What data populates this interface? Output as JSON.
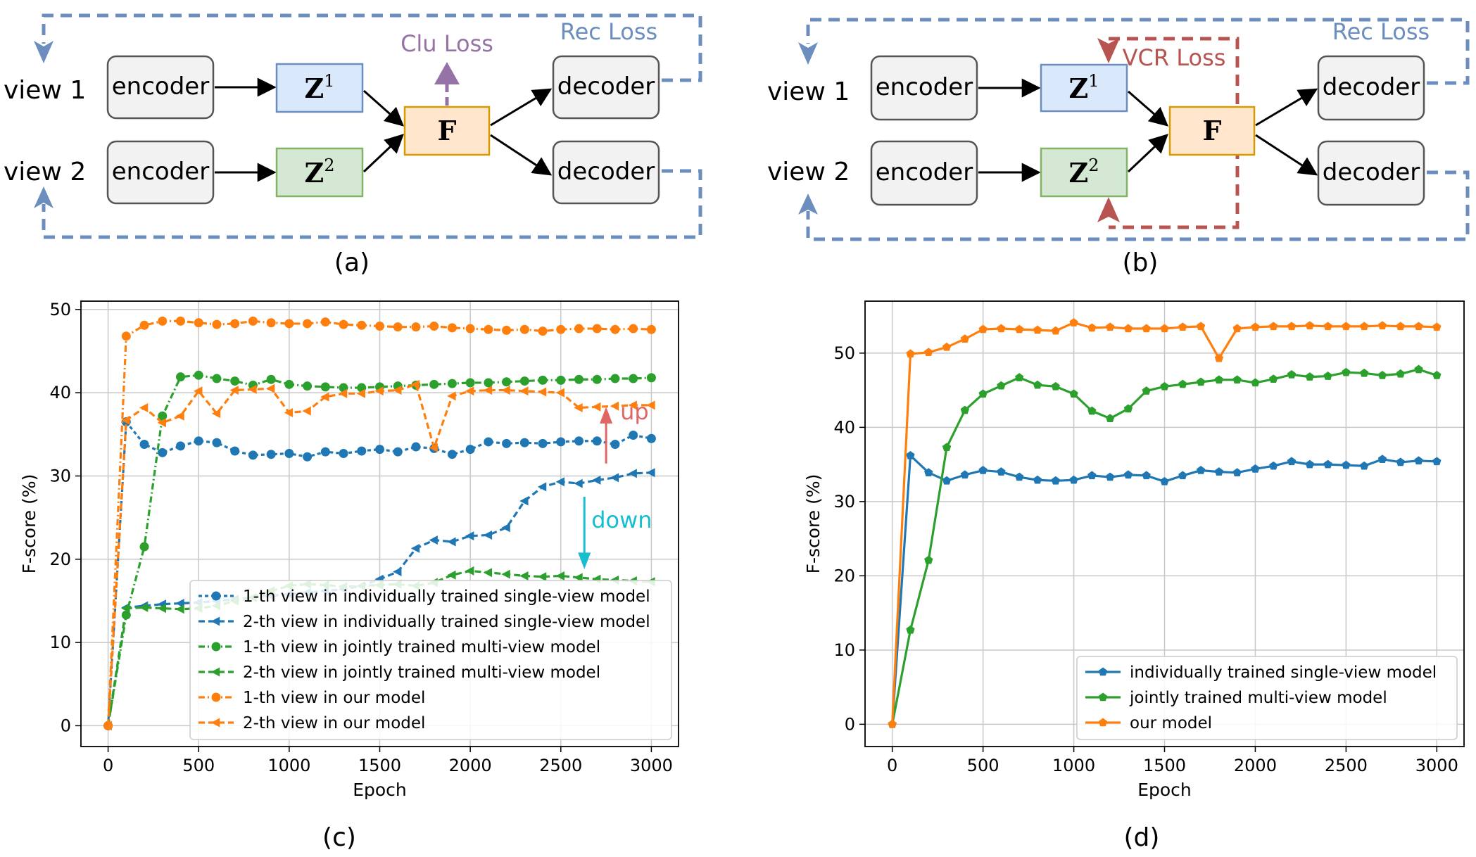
{
  "diagrams": [
    {
      "caption": "(a)",
      "views": [
        "view 1",
        "view 2"
      ],
      "encoder_label": "encoder",
      "decoder_label": "decoder",
      "latents": [
        {
          "base": "Z",
          "sup": "1"
        },
        {
          "base": "Z",
          "sup": "2"
        }
      ],
      "fusion_label": "F",
      "loss_labels": [
        "Clu Loss",
        "Rec Loss"
      ]
    },
    {
      "caption": "(b)",
      "views": [
        "view 1",
        "view 2"
      ],
      "encoder_label": "encoder",
      "decoder_label": "decoder",
      "latents": [
        {
          "base": "Z",
          "sup": "1"
        },
        {
          "base": "Z",
          "sup": "2"
        }
      ],
      "fusion_label": "F",
      "loss_labels": [
        "VCR Loss",
        "Rec Loss"
      ]
    }
  ],
  "colors": {
    "encoder_fill": "#f2f2f2",
    "z1_fill": "#dae8fc",
    "z1_stroke": "#6c8ebf",
    "z2_fill": "#d5e8d4",
    "z2_stroke": "#82b366",
    "f_fill": "#ffe6cc",
    "f_stroke": "#d79b00",
    "rec": "#6c8ebf",
    "clu": "#9673a6",
    "vcr": "#b85450",
    "up": "#e06666",
    "down": "#17becf",
    "c_blue": "#1f77b4",
    "c_green": "#2ca02c",
    "c_orange": "#ff7f0e"
  },
  "chart_data": [
    {
      "type": "line",
      "caption": "(c)",
      "xlabel": "Epoch",
      "ylabel": "F-score (%)",
      "xlim": [
        -150,
        3150
      ],
      "ylim": [
        -2.5,
        51
      ],
      "xticks": [
        0,
        500,
        1000,
        1500,
        2000,
        2500,
        3000
      ],
      "yticks": [
        0,
        10,
        20,
        30,
        40,
        50
      ],
      "grid": true,
      "legend_position": "lower-right",
      "annotations": [
        "up",
        "down"
      ],
      "x": [
        0,
        100,
        200,
        300,
        400,
        500,
        600,
        700,
        800,
        900,
        1000,
        1100,
        1200,
        1300,
        1400,
        1500,
        1600,
        1700,
        1800,
        1900,
        2000,
        2100,
        2200,
        2300,
        2400,
        2500,
        2600,
        2700,
        2800,
        2900,
        3000
      ],
      "series": [
        {
          "name": "1-th view in individually trained single-view model",
          "color": "c_blue",
          "dash": "5,4",
          "marker": "circle",
          "values": [
            0,
            36.5,
            33.8,
            32.8,
            33.6,
            34.2,
            34.0,
            33.0,
            32.5,
            32.6,
            32.7,
            32.3,
            32.9,
            32.7,
            33.0,
            33.2,
            32.9,
            33.5,
            33.3,
            32.6,
            33.2,
            34.1,
            33.9,
            34.0,
            33.9,
            34.1,
            34.2,
            34.2,
            33.8,
            34.9,
            34.5
          ]
        },
        {
          "name": "2-th view in individually trained single-view model",
          "color": "c_blue",
          "dash": "9,5",
          "marker": "tri-left",
          "values": [
            0,
            14.2,
            14.4,
            14.6,
            14.7,
            14.8,
            15.0,
            15.2,
            15.4,
            15.6,
            15.8,
            16.0,
            16.2,
            16.4,
            16.8,
            17.6,
            18.5,
            21.3,
            22.3,
            22.1,
            22.8,
            22.9,
            23.8,
            27.0,
            28.7,
            29.3,
            29.1,
            29.5,
            29.8,
            30.3,
            30.4
          ]
        },
        {
          "name": "1-th view in jointly trained multi-view model",
          "color": "c_green",
          "dash": "9,4,2,4",
          "marker": "circle",
          "values": [
            0,
            13.3,
            21.5,
            37.2,
            41.9,
            42.1,
            41.7,
            41.4,
            40.9,
            41.6,
            41.0,
            40.8,
            40.7,
            40.6,
            40.6,
            40.7,
            40.8,
            40.9,
            41.0,
            41.1,
            41.2,
            41.2,
            41.3,
            41.4,
            41.5,
            41.5,
            41.6,
            41.6,
            41.7,
            41.7,
            41.8
          ]
        },
        {
          "name": "2-th view in jointly trained multi-view model",
          "color": "c_green",
          "dash": "9,5",
          "marker": "tri-left",
          "values": [
            0,
            14.1,
            14.2,
            14.1,
            14.0,
            14.1,
            14.4,
            15.0,
            15.4,
            16.2,
            16.8,
            17.0,
            16.9,
            16.7,
            16.8,
            16.9,
            17.0,
            16.8,
            17.2,
            18.1,
            18.6,
            18.4,
            18.2,
            18.0,
            17.9,
            18.0,
            17.8,
            17.6,
            17.5,
            17.4,
            17.3
          ]
        },
        {
          "name": "1-th view in our model",
          "color": "c_orange",
          "dash": "9,4,2,4",
          "marker": "circle",
          "values": [
            0,
            46.8,
            48.1,
            48.6,
            48.6,
            48.4,
            48.2,
            48.3,
            48.6,
            48.4,
            48.3,
            48.3,
            48.5,
            48.2,
            48.1,
            48.0,
            47.9,
            47.9,
            48.0,
            47.8,
            47.7,
            47.6,
            47.5,
            47.6,
            47.4,
            47.6,
            47.7,
            47.7,
            47.6,
            47.7,
            47.6
          ]
        },
        {
          "name": "2-th view in our model",
          "color": "c_orange",
          "dash": "9,5",
          "marker": "tri-left",
          "values": [
            0,
            36.7,
            38.2,
            36.4,
            37.2,
            40.2,
            37.5,
            40.3,
            40.4,
            40.5,
            37.6,
            37.8,
            39.5,
            39.9,
            39.9,
            40.2,
            40.3,
            41.0,
            33.4,
            39.6,
            40.2,
            40.3,
            40.3,
            40.2,
            40.1,
            40.0,
            38.2,
            38.3,
            38.4,
            38.5,
            38.5
          ]
        }
      ]
    },
    {
      "type": "line",
      "caption": "(d)",
      "xlabel": "Epoch",
      "ylabel": "F-score (%)",
      "xlim": [
        -150,
        3150
      ],
      "ylim": [
        -3,
        57
      ],
      "xticks": [
        0,
        500,
        1000,
        1500,
        2000,
        2500,
        3000
      ],
      "yticks": [
        0,
        10,
        20,
        30,
        40,
        50
      ],
      "grid": true,
      "legend_position": "lower-right",
      "x": [
        0,
        100,
        200,
        300,
        400,
        500,
        600,
        700,
        800,
        900,
        1000,
        1100,
        1200,
        1300,
        1400,
        1500,
        1600,
        1700,
        1800,
        1900,
        2000,
        2100,
        2200,
        2300,
        2400,
        2500,
        2600,
        2700,
        2800,
        2900,
        3000
      ],
      "series": [
        {
          "name": "individually trained single-view model",
          "color": "c_blue",
          "dash": "",
          "marker": "pentagon",
          "values": [
            0,
            36.2,
            33.9,
            32.8,
            33.6,
            34.2,
            34.0,
            33.3,
            32.9,
            32.8,
            32.9,
            33.5,
            33.3,
            33.6,
            33.5,
            32.7,
            33.5,
            34.2,
            34.0,
            33.9,
            34.4,
            34.8,
            35.4,
            35.0,
            35.0,
            34.9,
            34.8,
            35.7,
            35.3,
            35.5,
            35.4
          ]
        },
        {
          "name": "jointly trained multi-view model",
          "color": "c_green",
          "dash": "",
          "marker": "pentagon",
          "values": [
            0,
            12.7,
            22.1,
            37.3,
            42.3,
            44.5,
            45.6,
            46.7,
            45.7,
            45.5,
            44.5,
            42.2,
            41.2,
            42.5,
            44.9,
            45.5,
            45.8,
            46.1,
            46.4,
            46.4,
            46.0,
            46.5,
            47.1,
            46.8,
            46.9,
            47.4,
            47.3,
            47.0,
            47.2,
            47.8,
            47.0
          ]
        },
        {
          "name": "our model",
          "color": "c_orange",
          "dash": "",
          "marker": "pentagon",
          "values": [
            0,
            49.9,
            50.1,
            50.8,
            51.9,
            53.2,
            53.3,
            53.2,
            53.1,
            53.0,
            54.1,
            53.4,
            53.5,
            53.3,
            53.3,
            53.3,
            53.5,
            53.6,
            49.3,
            53.3,
            53.5,
            53.6,
            53.6,
            53.7,
            53.6,
            53.6,
            53.6,
            53.7,
            53.6,
            53.6,
            53.5
          ]
        }
      ]
    }
  ]
}
